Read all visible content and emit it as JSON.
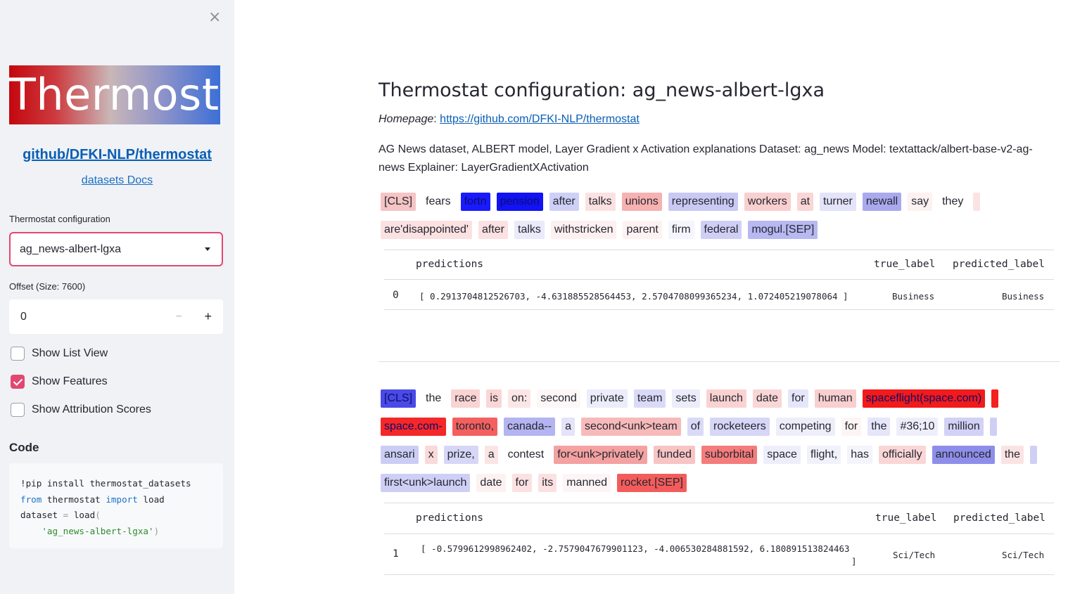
{
  "sidebar": {
    "close_glyph": "×",
    "logo_text": "Thermostat",
    "github_link": "github/DFKI-NLP/thermostat",
    "docs_link": "datasets Docs",
    "config_label": "Thermostat configuration",
    "config_value": "ag_news-albert-lgxa",
    "offset_label": "Offset (Size: 7600)",
    "offset_value": "0",
    "minus_glyph": "−",
    "plus_glyph": "+",
    "checkboxes": [
      {
        "label": "Show List View",
        "checked": false
      },
      {
        "label": "Show Features",
        "checked": true
      },
      {
        "label": "Show Attribution Scores",
        "checked": false
      }
    ],
    "code_heading": "Code",
    "code": {
      "l1": "!pip install thermostat_datasets",
      "l2_kw1": "from",
      "l2_mid": " thermostat ",
      "l2_kw2": "import",
      "l2_end": " load",
      "l3_a": "dataset ",
      "l3_eq": "=",
      "l3_b": " load",
      "l3_paren": "(",
      "l4_str": "'ag_news-albert-lgxa'",
      "l4_paren": ")"
    },
    "accent_color": "#e2476f"
  },
  "main": {
    "title": "Thermostat configuration: ag_news-albert-lgxa",
    "homepage_label": "Homepage",
    "homepage_colon": ": ",
    "homepage_url": "https://github.com/DFKI-NLP/thermostat",
    "description": "AG News dataset, ALBERT model, Layer Gradient x Activation explanations Dataset: ag_news Model: textattack/albert-base-v2-ag-news Explainer: LayerGradientXActivation"
  },
  "examples": [
    {
      "rows": [
        [
          {
            "t": "[CLS]",
            "c": "#f5c4c4"
          },
          {
            "t": "fears",
            "c": "#ffffff"
          },
          {
            "t": "fortn",
            "c": "#1a1aff"
          },
          {
            "t": "pension",
            "c": "#1212f5"
          },
          {
            "t": "after",
            "c": "#cfd0f7"
          },
          {
            "t": "talks",
            "c": "#fbe1e1"
          },
          {
            "t": "unions",
            "c": "#f6b1b1"
          },
          {
            "t": "representing",
            "c": "#c9c9f4"
          },
          {
            "t": "workers",
            "c": "#f9cfcf"
          },
          {
            "t": "at",
            "c": "#fad6d6"
          },
          {
            "t": "turner",
            "c": "#e3e3f9"
          },
          {
            "t": "newall",
            "c": "#a9a9ee"
          },
          {
            "t": "say",
            "c": "#fdf1f1"
          },
          {
            "t": "they",
            "c": "#ffffff"
          },
          {
            "t": "",
            "c": "#fbe3e3"
          }
        ],
        [
          {
            "t": "are'disappointed'",
            "c": "#fbe1e1"
          },
          {
            "t": "after",
            "c": "#fbe1e1"
          },
          {
            "t": "talks",
            "c": "#eaeafb"
          },
          {
            "t": "withstricken",
            "c": "#fdf0f0"
          },
          {
            "t": "parent",
            "c": "#fdf2f2"
          },
          {
            "t": "firm",
            "c": "#f5f5fd"
          },
          {
            "t": "federal",
            "c": "#cfcff6"
          },
          {
            "t": "mogul.[SEP]",
            "c": "#b8b8f2"
          }
        ]
      ],
      "table": {
        "col_predictions": "predictions",
        "col_true": "true_label",
        "col_pred": "predicted_label",
        "index": "0",
        "predictions": "[ 0.2913704812526703, -4.631885528564453, 2.5704708099365234, 1.072405219078064 ]",
        "true_label": "Business",
        "predicted_label": "Business"
      }
    },
    {
      "rows": [
        [
          {
            "t": "[CLS]",
            "c": "#4a4ae8"
          },
          {
            "t": "the",
            "c": "#ffffff"
          },
          {
            "t": "race",
            "c": "#fad3d3"
          },
          {
            "t": "is",
            "c": "#fad6d6"
          },
          {
            "t": "on:",
            "c": "#fbe6e6"
          },
          {
            "t": "second",
            "c": "#fdf7f7"
          },
          {
            "t": "private",
            "c": "#ececfb"
          },
          {
            "t": "team",
            "c": "#dadaf8"
          },
          {
            "t": "sets",
            "c": "#ececfb"
          },
          {
            "t": "launch",
            "c": "#fad2d2"
          },
          {
            "t": "date",
            "c": "#fad6d6"
          },
          {
            "t": "for",
            "c": "#e6e6fa"
          },
          {
            "t": "human",
            "c": "#f9cfcf"
          },
          {
            "t": "spaceflight(space.com)",
            "c": "#f21a1a"
          },
          {
            "t": "",
            "c": "#f52020"
          }
        ],
        [
          {
            "t": "space.com-",
            "c": "#f42828"
          },
          {
            "t": "toronto,",
            "c": "#f46060"
          },
          {
            "t": "canada--",
            "c": "#b4b4f1"
          },
          {
            "t": "a",
            "c": "#e3e3f9"
          },
          {
            "t": "second<unk>team",
            "c": "#f7baba"
          },
          {
            "t": "of",
            "c": "#dadaf8"
          },
          {
            "t": "rocketeers",
            "c": "#d6d6f7"
          },
          {
            "t": "competing",
            "c": "#eeeefb"
          },
          {
            "t": "for",
            "c": "#fdf5f5"
          },
          {
            "t": "the",
            "c": "#e6e6fa"
          },
          {
            "t": "#36;10",
            "c": "#eeeefb"
          },
          {
            "t": "million",
            "c": "#d2d2f6"
          },
          {
            "t": "",
            "c": "#cfcff6"
          }
        ],
        [
          {
            "t": "ansari",
            "c": "#cccdf5"
          },
          {
            "t": "x",
            "c": "#fad9d9"
          },
          {
            "t": "prize,",
            "c": "#d6d6f7"
          },
          {
            "t": "a",
            "c": "#fbe4e4"
          },
          {
            "t": "contest",
            "c": "#ffffff"
          },
          {
            "t": "for<unk>privately",
            "c": "#f4a1a1"
          },
          {
            "t": "funded",
            "c": "#f8c4c4"
          },
          {
            "t": "suborbital",
            "c": "#f57c7c"
          },
          {
            "t": "space",
            "c": "#eeeefb"
          },
          {
            "t": "flight,",
            "c": "#f1f1fc"
          },
          {
            "t": "has",
            "c": "#f4f4fc"
          },
          {
            "t": "officially",
            "c": "#fad6d6"
          },
          {
            "t": "announced",
            "c": "#8e8eea"
          },
          {
            "t": "the",
            "c": "#fbe3e3"
          },
          {
            "t": "",
            "c": "#cfcff6"
          }
        ],
        [
          {
            "t": "first<unk>launch",
            "c": "#cfcff6"
          },
          {
            "t": "date",
            "c": "#fdf2f2"
          },
          {
            "t": "for",
            "c": "#fbe1e1"
          },
          {
            "t": "its",
            "c": "#fbe1e1"
          },
          {
            "t": "manned",
            "c": "#fdf5f5"
          },
          {
            "t": "rocket.[SEP]",
            "c": "#f45c5c"
          }
        ]
      ],
      "table": {
        "col_predictions": "predictions",
        "col_true": "true_label",
        "col_pred": "predicted_label",
        "index": "1",
        "predictions": "[ -0.5799612998962402, -2.7579047679901123, -4.006530284881592, 6.180891513824463",
        "predictions_end": "]",
        "true_label": "Sci/Tech",
        "predicted_label": "Sci/Tech"
      }
    }
  ]
}
